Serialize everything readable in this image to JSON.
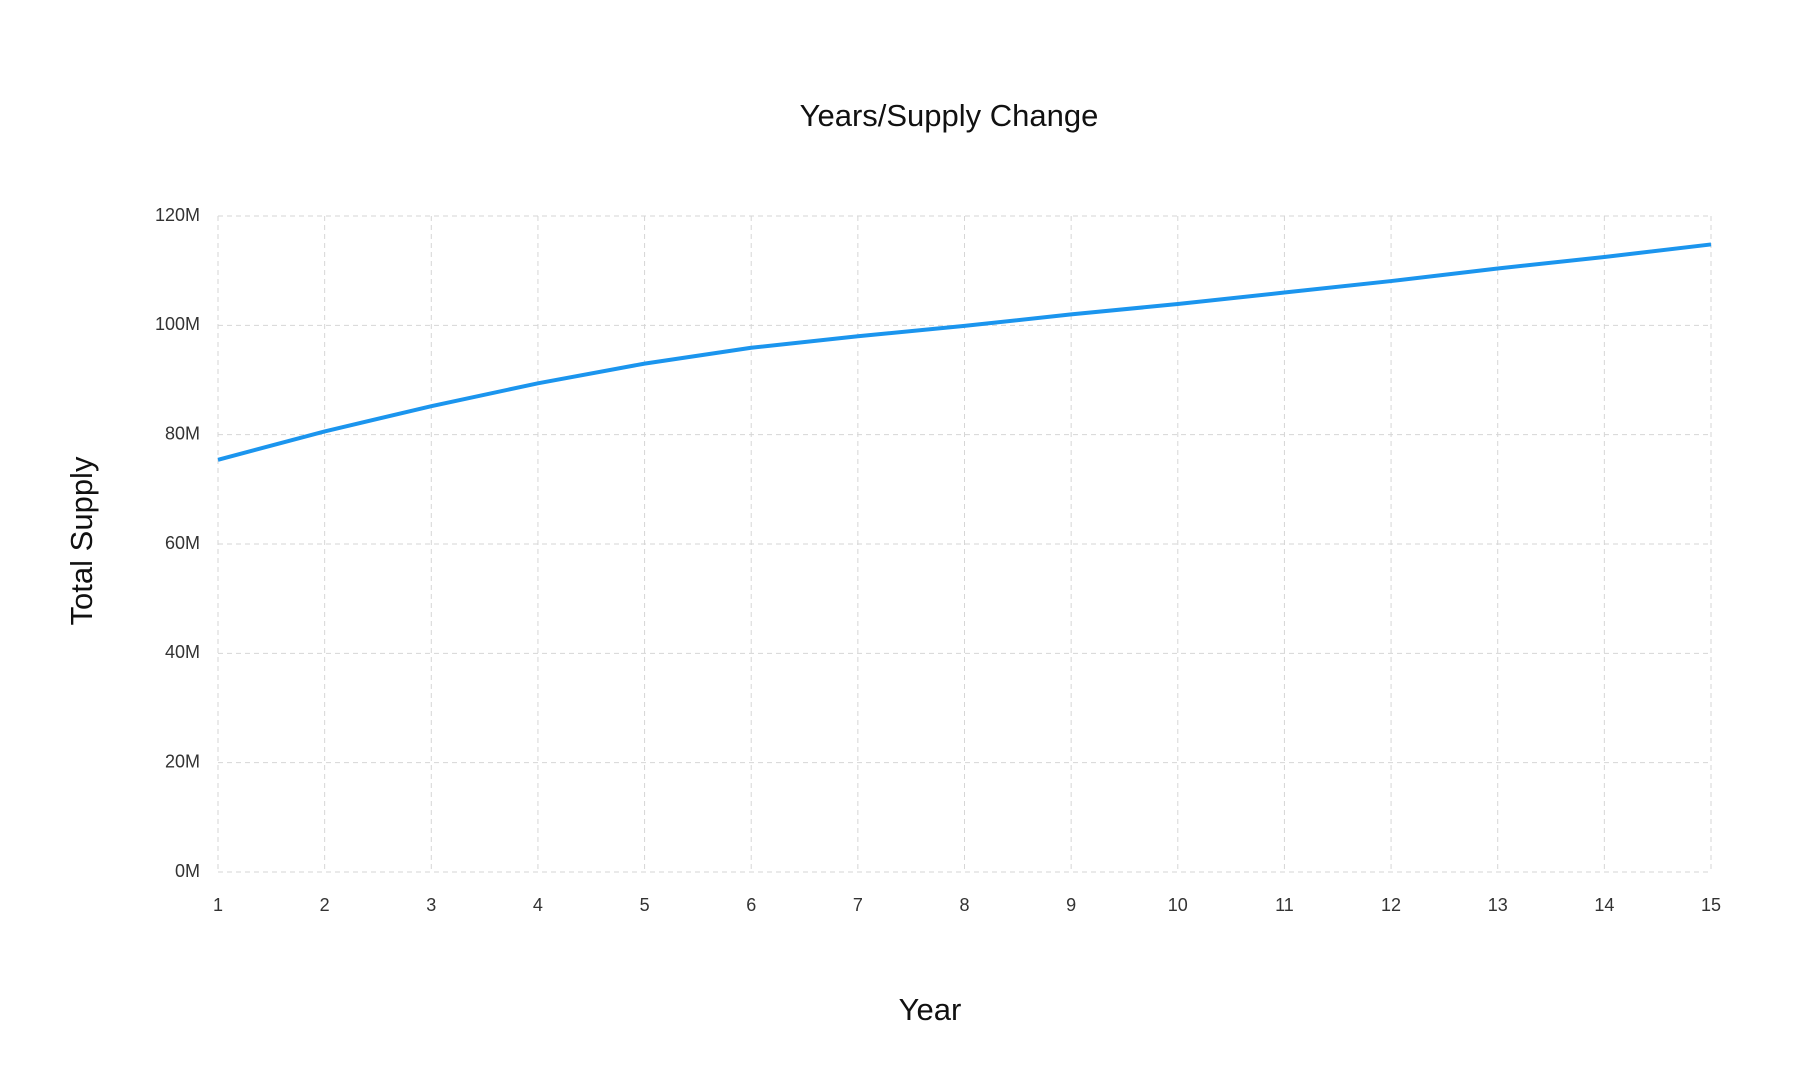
{
  "chart_data": {
    "type": "line",
    "title": "Years/Supply Change",
    "x_label": "Year",
    "y_label": "Total Supply",
    "x": [
      1,
      2,
      3,
      4,
      5,
      6,
      7,
      8,
      9,
      10,
      11,
      12,
      13,
      14,
      15
    ],
    "series": [
      {
        "color": "#1b95ee",
        "values": [
          75.4,
          80.6,
          85.2,
          89.4,
          93.0,
          95.9,
          98.0,
          99.9,
          102.0,
          103.9,
          106.0,
          108.1,
          110.4,
          112.5,
          114.8
        ]
      }
    ],
    "xlim": [
      1,
      15
    ],
    "xticks": [
      1,
      2,
      3,
      4,
      5,
      6,
      7,
      8,
      9,
      10,
      11,
      12,
      13,
      14,
      15
    ],
    "ylim": [
      0,
      120
    ],
    "yticks": [
      {
        "value": 0,
        "label": "0M"
      },
      {
        "value": 20,
        "label": "20M"
      },
      {
        "value": 40,
        "label": "40M"
      },
      {
        "value": 60,
        "label": "60M"
      },
      {
        "value": 80,
        "label": "80M"
      },
      {
        "value": 100,
        "label": "100M"
      },
      {
        "value": 120,
        "label": "120M"
      }
    ],
    "grid": true
  }
}
